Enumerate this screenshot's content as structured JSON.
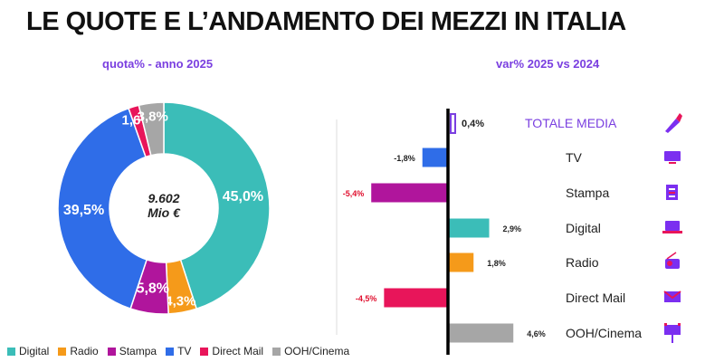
{
  "title": "LE QUOTE E L’ANDAMENTO DEI MEZZI IN ITALIA",
  "colors": {
    "Digital": "#3bbdb8",
    "Radio": "#f59a1a",
    "Stampa": "#b0159c",
    "TV": "#2f6de8",
    "Direct Mail": "#e8155a",
    "OOH/Cinema": "#a6a6a6",
    "accent": "#7a3fe0"
  },
  "chart_data": [
    {
      "type": "pie",
      "donut": true,
      "title": "quota% - anno 2025",
      "center_label": [
        "9.602",
        "Mio €"
      ],
      "categories": [
        "Digital",
        "Radio",
        "Stampa",
        "TV",
        "Direct Mail",
        "OOH/Cinema"
      ],
      "values": [
        45.0,
        4.3,
        5.8,
        39.5,
        1.6,
        3.8
      ],
      "data_labels": [
        "45,0%",
        "4,3%",
        "5,8%",
        "39,5%",
        "1,6%",
        "3,8%"
      ],
      "legend": [
        "Digital",
        "Radio",
        "Stampa",
        "TV",
        "Direct Mail",
        "OOH/Cinema"
      ],
      "legend_position": "bottom"
    },
    {
      "type": "bar",
      "orientation": "horizontal",
      "title": "var% 2025 vs 2024",
      "categories": [
        "TOTALE MEDIA",
        "TV",
        "Stampa",
        "Digital",
        "Radio",
        "Direct Mail",
        "OOH/Cinema"
      ],
      "values": [
        0.4,
        -1.8,
        -5.4,
        2.9,
        1.8,
        -4.5,
        4.6
      ],
      "data_labels": [
        "0,4%",
        "-1,8%",
        "-5,4%",
        "2,9%",
        "1,8%",
        "-4,5%",
        "4,6%"
      ],
      "icons": [
        "brush-icon",
        "tv-icon",
        "newspaper-icon",
        "laptop-icon",
        "radio-icon",
        "mail-icon",
        "billboard-icon"
      ]
    }
  ]
}
